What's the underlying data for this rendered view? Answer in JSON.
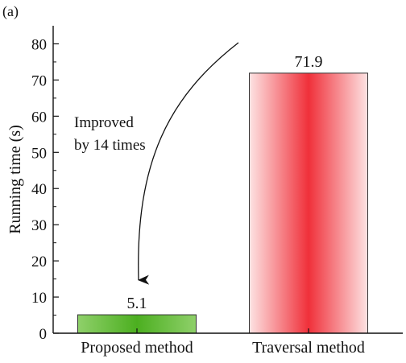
{
  "panel_label": "(a)",
  "colors": {
    "proposed_edge": "#8fd06a",
    "proposed_center": "#4caf20",
    "traversal_edge": "#fde3e3",
    "traversal_center": "#f0303a",
    "axis": "#111111"
  },
  "chart_data": {
    "type": "bar",
    "categories": [
      "Proposed method",
      "Traversal method"
    ],
    "values": [
      5.1,
      71.9
    ],
    "value_labels": [
      "5.1",
      "71.9"
    ],
    "ylabel": "Running time (s)",
    "xlabel": "",
    "ylim": [
      0,
      85
    ],
    "yticks": [
      0,
      10,
      20,
      30,
      40,
      50,
      60,
      70,
      80
    ],
    "grid": false,
    "annotation": {
      "lines": [
        "Improved",
        "by 14 times"
      ],
      "arrow": "curved arrow from the top of the Traversal method bar down to the Proposed method bar"
    }
  }
}
